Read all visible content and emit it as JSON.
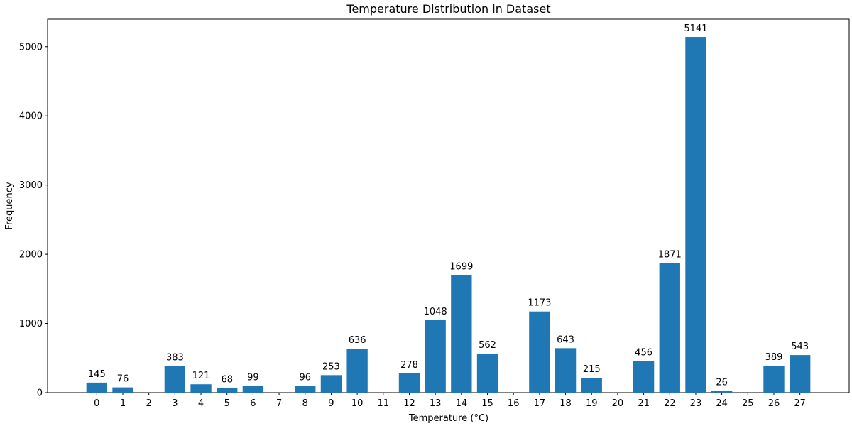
{
  "chart_data": {
    "type": "bar",
    "title": "Temperature Distribution in Dataset",
    "xlabel": "Temperature (°C)",
    "ylabel": "Frequency",
    "categories": [
      "0",
      "1",
      "2",
      "3",
      "4",
      "5",
      "6",
      "7",
      "8",
      "9",
      "10",
      "11",
      "12",
      "13",
      "14",
      "15",
      "16",
      "17",
      "18",
      "19",
      "20",
      "21",
      "22",
      "23",
      "24",
      "25",
      "26",
      "27"
    ],
    "values": [
      145,
      76,
      null,
      383,
      121,
      68,
      99,
      null,
      96,
      253,
      636,
      null,
      278,
      1048,
      1699,
      562,
      null,
      1173,
      643,
      215,
      null,
      456,
      1871,
      5141,
      26,
      null,
      389,
      543
    ],
    "yticks": [
      0,
      1000,
      2000,
      3000,
      4000,
      5000
    ],
    "ylim": [
      0,
      5398
    ],
    "xlim": [
      -1.89,
      28.89
    ],
    "bar_color": "#1f77b4",
    "grid": false,
    "data_labels": true
  }
}
